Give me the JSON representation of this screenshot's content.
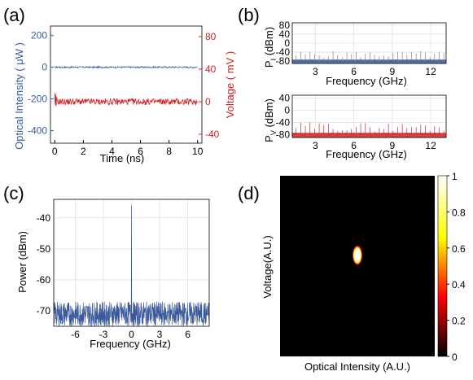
{
  "colors": {
    "blue": "#3a5a9c",
    "red": "#d42020",
    "grid": "#d8d8d8",
    "gray": "#808080",
    "heat_bg": "#000000"
  },
  "chart_data": [
    {
      "panel": "(a)",
      "type": "line",
      "xlabel": "Time (ns)",
      "ylabel_left": "Optical Intensity ( μW )",
      "ylabel_right": "Voltage ( mV )",
      "xlim": [
        -0.3,
        10.3
      ],
      "ylim_left": [
        -480,
        260
      ],
      "ylim_right": [
        -51,
        93
      ],
      "x_ticks": [
        "0",
        "2",
        "4",
        "6",
        "8",
        "10"
      ],
      "y_left_ticks": [
        "200",
        "0",
        "-200",
        "-400"
      ],
      "y_right_ticks": [
        "80",
        "40",
        "0",
        "-40"
      ],
      "grid": false,
      "series": [
        {
          "axis": "left",
          "color": "blue",
          "mean": 0,
          "noise_amplitude": 5,
          "x_range": [
            0,
            10
          ]
        },
        {
          "axis": "right",
          "color": "red",
          "mean": 0,
          "noise_amplitude": 4,
          "x_range": [
            0,
            10
          ],
          "initial_transient": 8
        }
      ]
    },
    {
      "panel": "(b)",
      "type": "bar",
      "title_top_ylabel": {
        "main": "P",
        "sub": "I",
        "rest": " (dBm)"
      },
      "xlabel": "Frequency (GHz)",
      "xlim": [
        1.2,
        13.2
      ],
      "ylim": [
        -90,
        90
      ],
      "x_ticks": [
        "3",
        "6",
        "9",
        "12"
      ],
      "y_ticks": [
        "80",
        "40",
        "0",
        "-40",
        "-80"
      ],
      "grid": true,
      "color": "blue",
      "floor_level": -80,
      "comb_spacing_ghz": 0.36,
      "comb_level_range": [
        -65,
        -35
      ]
    },
    {
      "panel": "(b)",
      "type": "bar",
      "title_top_ylabel": {
        "main": "P",
        "sub": "V",
        "rest": " (dBm)"
      },
      "xlabel": "Frequency (GHz)",
      "xlim": [
        1.2,
        13.2
      ],
      "ylim": [
        -90,
        50
      ],
      "x_ticks": [
        "3",
        "6",
        "9",
        "12"
      ],
      "y_ticks": [
        "40",
        "0",
        "-40",
        "-80"
      ],
      "grid": true,
      "color": "red",
      "floor_level": -80,
      "comb_spacing_ghz": 0.36,
      "comb_level_range": [
        -70,
        -40
      ]
    },
    {
      "panel": "(c)",
      "type": "line",
      "ylabel": "Power (dBm)",
      "xlabel": "Frequency (GHz)",
      "xlim": [
        -8.3,
        8.3
      ],
      "ylim": [
        -75,
        -34
      ],
      "x_ticks": [
        "-6",
        "-3",
        "0",
        "3",
        "6"
      ],
      "y_ticks": [
        "-40",
        "-50",
        "-60",
        "-70"
      ],
      "grid": true,
      "color": "blue",
      "noise_floor_range": [
        -75,
        -67
      ],
      "peak": {
        "x": 0,
        "y": -36
      }
    },
    {
      "panel": "(d)",
      "type": "heatmap",
      "xlabel": "Optical Intensity (A.U.)",
      "ylabel": "Voltage(A.U.)",
      "colorbar_ticks": [
        "1",
        "0.8",
        "0.6",
        "0.4",
        "0.2",
        "0"
      ],
      "colorbar_range": [
        0,
        1
      ],
      "spot": {
        "x": 0.5,
        "y": 0.56,
        "level": 1
      }
    }
  ]
}
